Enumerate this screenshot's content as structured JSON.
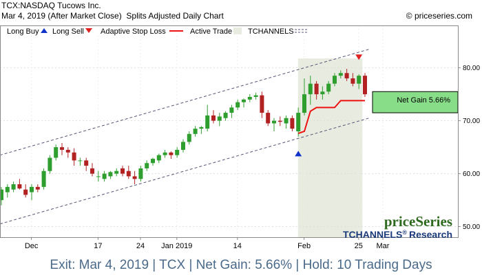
{
  "header": {
    "ticker_title": "TCX:NASDAQ Tucows Inc.",
    "sub_title": "Mar 4, 2019 (After Market Close)  Splits Adjusted Daily Chart",
    "copyright": "© priceseries.com"
  },
  "legend": {
    "long_buy": "Long Buy",
    "long_sell": "Long Sell",
    "adaptive_stop": "Adaptive Stop Loss",
    "active_trade": "Active Trade",
    "tchannels": "TCHANNELS"
  },
  "net_gain_label": "Net Gain 5.66%",
  "watermark": {
    "brand": "priceSeries",
    "product": "TCHANNELS",
    "registered": "®",
    "research": "Research"
  },
  "footer": {
    "exit": "Exit: Mar 4, 2019",
    "symbol": "TCX",
    "gain": "Net Gain: 5.66%",
    "hold": "Hold: 10 Trading Days",
    "sep": " | "
  },
  "colors": {
    "up": "#2e9e2e",
    "down": "#b22222",
    "stop": "#ee1111",
    "active_trade_bg": "#e8ebdf",
    "gain_box": "#88dd88",
    "buy_arrow": "#1133cc",
    "sell_arrow": "#dd2222",
    "channel": "#555577",
    "footer_text": "#4a6a8a",
    "watermark_green": "#2e6a1e",
    "watermark_blue": "#1a3a7a"
  },
  "chart_data": {
    "type": "candlestick",
    "y_ticks": [
      50,
      60,
      70,
      80
    ],
    "y_tick_labels": [
      "50.00",
      "60.00",
      "70.00",
      "80.00"
    ],
    "ylim": [
      48,
      88
    ],
    "x_tick_labels": [
      "Dec",
      "17",
      "24",
      "Jan 2019",
      "14",
      "Feb",
      "25",
      "Mar"
    ],
    "candles": [
      {
        "o": 55.0,
        "h": 57.5,
        "l": 54.0,
        "c": 57.0
      },
      {
        "o": 56.5,
        "h": 58.0,
        "l": 55.5,
        "c": 57.5
      },
      {
        "o": 57.0,
        "h": 58.5,
        "l": 56.5,
        "c": 58.0
      },
      {
        "o": 58.0,
        "h": 59.0,
        "l": 57.0,
        "c": 57.2
      },
      {
        "o": 57.0,
        "h": 58.0,
        "l": 55.5,
        "c": 56.0
      },
      {
        "o": 56.5,
        "h": 58.0,
        "l": 55.0,
        "c": 57.5
      },
      {
        "o": 57.5,
        "h": 58.0,
        "l": 56.5,
        "c": 57.0
      },
      {
        "o": 57.5,
        "h": 61.0,
        "l": 57.0,
        "c": 60.5
      },
      {
        "o": 60.5,
        "h": 63.5,
        "l": 60.0,
        "c": 63.0
      },
      {
        "o": 63.0,
        "h": 65.5,
        "l": 62.5,
        "c": 65.0
      },
      {
        "o": 65.0,
        "h": 65.8,
        "l": 63.5,
        "c": 64.5
      },
      {
        "o": 64.5,
        "h": 65.0,
        "l": 63.0,
        "c": 64.0
      },
      {
        "o": 64.0,
        "h": 64.8,
        "l": 61.5,
        "c": 62.5
      },
      {
        "o": 62.5,
        "h": 63.0,
        "l": 61.5,
        "c": 62.5
      },
      {
        "o": 62.5,
        "h": 63.0,
        "l": 60.5,
        "c": 61.5
      },
      {
        "o": 61.0,
        "h": 62.0,
        "l": 59.5,
        "c": 60.0
      },
      {
        "o": 59.5,
        "h": 60.5,
        "l": 58.5,
        "c": 59.5
      },
      {
        "o": 59.0,
        "h": 60.5,
        "l": 58.5,
        "c": 60.0
      },
      {
        "o": 59.5,
        "h": 60.5,
        "l": 59.0,
        "c": 60.3
      },
      {
        "o": 60.0,
        "h": 61.0,
        "l": 59.5,
        "c": 60.5
      },
      {
        "o": 61.0,
        "h": 61.5,
        "l": 59.5,
        "c": 60.0
      },
      {
        "o": 60.5,
        "h": 61.5,
        "l": 59.0,
        "c": 59.5
      },
      {
        "o": 59.5,
        "h": 60.5,
        "l": 58.0,
        "c": 59.0
      },
      {
        "o": 59.0,
        "h": 61.5,
        "l": 58.5,
        "c": 61.0
      },
      {
        "o": 61.0,
        "h": 62.5,
        "l": 60.5,
        "c": 62.0
      },
      {
        "o": 62.0,
        "h": 63.0,
        "l": 61.5,
        "c": 62.8
      },
      {
        "o": 62.5,
        "h": 63.8,
        "l": 62.0,
        "c": 63.5
      },
      {
        "o": 63.5,
        "h": 64.5,
        "l": 63.0,
        "c": 64.0
      },
      {
        "o": 64.0,
        "h": 64.2,
        "l": 62.8,
        "c": 63.5
      },
      {
        "o": 63.5,
        "h": 65.0,
        "l": 63.0,
        "c": 64.5
      },
      {
        "o": 64.5,
        "h": 66.5,
        "l": 64.0,
        "c": 66.0
      },
      {
        "o": 66.0,
        "h": 68.0,
        "l": 65.5,
        "c": 67.5
      },
      {
        "o": 67.5,
        "h": 69.0,
        "l": 67.0,
        "c": 68.5
      },
      {
        "o": 68.5,
        "h": 69.0,
        "l": 67.5,
        "c": 68.8
      },
      {
        "o": 68.5,
        "h": 73.0,
        "l": 68.0,
        "c": 71.0
      },
      {
        "o": 71.0,
        "h": 72.0,
        "l": 69.5,
        "c": 70.0
      },
      {
        "o": 70.0,
        "h": 71.5,
        "l": 69.0,
        "c": 70.8
      },
      {
        "o": 70.5,
        "h": 71.8,
        "l": 70.0,
        "c": 71.5
      },
      {
        "o": 71.5,
        "h": 73.0,
        "l": 70.5,
        "c": 72.5
      },
      {
        "o": 72.5,
        "h": 74.0,
        "l": 72.0,
        "c": 73.5
      },
      {
        "o": 73.5,
        "h": 74.2,
        "l": 72.5,
        "c": 74.0
      },
      {
        "o": 74.0,
        "h": 75.0,
        "l": 73.5,
        "c": 74.5
      },
      {
        "o": 74.5,
        "h": 75.3,
        "l": 74.0,
        "c": 74.8
      },
      {
        "o": 74.8,
        "h": 75.5,
        "l": 70.5,
        "c": 71.5
      },
      {
        "o": 71.5,
        "h": 72.0,
        "l": 69.0,
        "c": 69.5
      },
      {
        "o": 69.5,
        "h": 70.5,
        "l": 68.0,
        "c": 70.0
      },
      {
        "o": 70.0,
        "h": 70.8,
        "l": 69.0,
        "c": 69.8
      },
      {
        "o": 69.5,
        "h": 71.0,
        "l": 68.5,
        "c": 70.5
      },
      {
        "o": 70.5,
        "h": 71.0,
        "l": 68.0,
        "c": 68.5
      },
      {
        "o": 68.0,
        "h": 72.5,
        "l": 67.0,
        "c": 71.5
      },
      {
        "o": 71.5,
        "h": 78.0,
        "l": 71.0,
        "c": 75.0
      },
      {
        "o": 75.0,
        "h": 78.5,
        "l": 73.0,
        "c": 77.0
      },
      {
        "o": 77.0,
        "h": 77.5,
        "l": 74.0,
        "c": 75.0
      },
      {
        "o": 75.0,
        "h": 76.5,
        "l": 74.0,
        "c": 75.5
      },
      {
        "o": 75.5,
        "h": 77.5,
        "l": 75.0,
        "c": 77.0
      },
      {
        "o": 77.0,
        "h": 79.0,
        "l": 76.5,
        "c": 78.5
      },
      {
        "o": 78.5,
        "h": 79.5,
        "l": 78.0,
        "c": 79.0
      },
      {
        "o": 79.0,
        "h": 79.8,
        "l": 77.5,
        "c": 78.0
      },
      {
        "o": 78.0,
        "h": 79.0,
        "l": 76.5,
        "c": 77.0
      },
      {
        "o": 77.0,
        "h": 78.8,
        "l": 76.0,
        "c": 78.5
      },
      {
        "o": 78.5,
        "h": 79.0,
        "l": 74.5,
        "c": 75.0
      }
    ],
    "channel_upper": {
      "start": 63.5,
      "end": 83.5
    },
    "channel_lower": {
      "start": 50.5,
      "end": 70.5
    },
    "stop_loss": [
      null,
      null,
      null,
      null,
      null,
      null,
      null,
      null,
      null,
      null,
      null,
      null,
      null,
      null,
      null,
      null,
      null,
      null,
      null,
      null,
      null,
      null,
      null,
      null,
      null,
      null,
      null,
      null,
      null,
      null,
      null,
      null,
      null,
      null,
      null,
      null,
      null,
      null,
      null,
      null,
      null,
      null,
      null,
      null,
      null,
      null,
      null,
      null,
      null,
      67.6,
      68.0,
      71.8,
      72.5,
      72.5,
      72.5,
      72.5,
      73.8,
      73.8,
      73.8,
      73.8,
      73.8
    ],
    "active_trade_range": [
      49,
      59
    ],
    "buy_index": 49,
    "buy_value": 63.8,
    "sell_index": 59,
    "sell_value": 82.0,
    "net_gain_box": {
      "from": 71.5,
      "to": 75.5
    }
  }
}
